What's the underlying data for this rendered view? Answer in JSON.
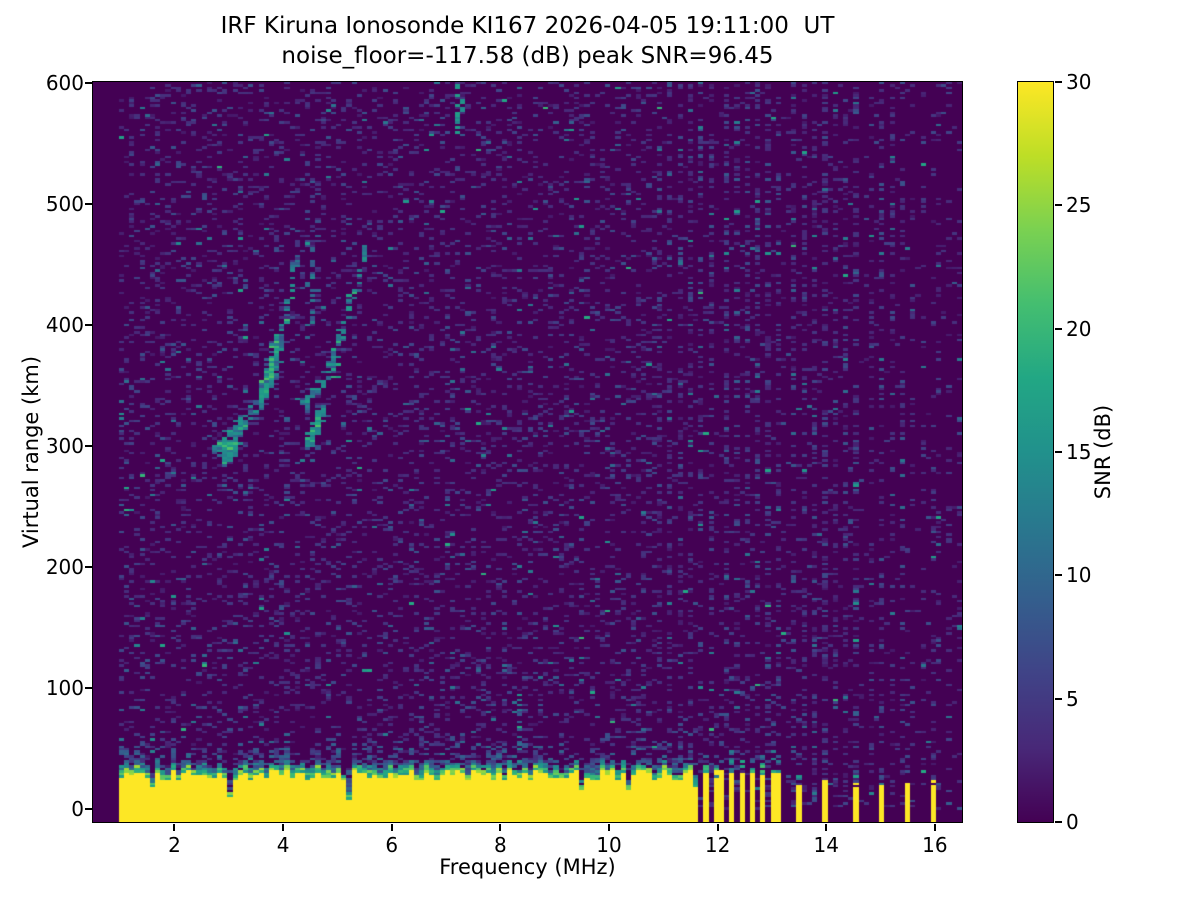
{
  "chart_data": {
    "type": "heatmap",
    "title": "IRF Kiruna Ionosonde KI167 2026-04-05 19:11:00  UT",
    "subtitle": "noise_floor=-117.58 (dB) peak SNR=96.45",
    "station": "KI167",
    "datetime_ut": "2026-04-05 19:11:00",
    "noise_floor_db": -117.58,
    "peak_snr_db": 96.45,
    "xlabel": "Frequency (MHz)",
    "ylabel": "Virtual range (km)",
    "xlim": [
      0.5,
      16.5
    ],
    "ylim": [
      -11,
      601
    ],
    "xticks": [
      2,
      4,
      6,
      8,
      10,
      12,
      14,
      16
    ],
    "yticks": [
      0,
      100,
      200,
      300,
      400,
      500,
      600
    ],
    "grid": false,
    "colormap": "viridis",
    "colormap_stops": [
      [
        0.0,
        "#440154"
      ],
      [
        0.1,
        "#482878"
      ],
      [
        0.2,
        "#404387"
      ],
      [
        0.3,
        "#345e8d"
      ],
      [
        0.4,
        "#29788e"
      ],
      [
        0.5,
        "#21918c"
      ],
      [
        0.6,
        "#22a784"
      ],
      [
        0.7,
        "#44be70"
      ],
      [
        0.8,
        "#7ad151"
      ],
      [
        0.9,
        "#bdde26"
      ],
      [
        1.0,
        "#fde725"
      ]
    ],
    "colorbar": {
      "label": "SNR (dB)",
      "ticks": [
        0,
        5,
        10,
        15,
        20,
        25,
        30
      ],
      "vmin": 0,
      "vmax": 30
    },
    "features": {
      "freq_start_mhz": 1.0,
      "ground_echo_band": {
        "freq_end_mhz": 11.6,
        "solid_top_km": 28,
        "fuzz_top_km": 52,
        "snr_db": 30
      },
      "restricted_band_bars_mhz": [
        11.81,
        12.03,
        12.24,
        12.46,
        12.67,
        12.86,
        13.06
      ],
      "isolated_bars_mhz": [
        13.52,
        13.98,
        14.53,
        14.99,
        15.49,
        15.99
      ],
      "echo_trace_branches": [
        [
          [
            2.8,
            296
          ],
          [
            2.95,
            303
          ],
          [
            3.1,
            312
          ],
          [
            3.25,
            322
          ]
        ],
        [
          [
            2.92,
            288
          ],
          [
            3.05,
            296
          ],
          [
            3.18,
            305
          ]
        ],
        [
          [
            3.3,
            318
          ],
          [
            3.5,
            330
          ],
          [
            3.7,
            345
          ],
          [
            3.85,
            363
          ],
          [
            3.95,
            385
          ],
          [
            4.05,
            408
          ],
          [
            4.15,
            432
          ],
          [
            4.25,
            458
          ]
        ],
        [
          [
            3.55,
            335
          ],
          [
            3.7,
            352
          ],
          [
            3.8,
            370
          ],
          [
            3.9,
            390
          ]
        ],
        [
          [
            4.35,
            330
          ],
          [
            4.55,
            343
          ],
          [
            4.75,
            357
          ],
          [
            4.95,
            374
          ],
          [
            5.1,
            393
          ],
          [
            5.25,
            415
          ],
          [
            5.4,
            440
          ],
          [
            5.52,
            463
          ]
        ],
        [
          [
            4.45,
            300
          ],
          [
            4.6,
            315
          ],
          [
            4.75,
            330
          ]
        ]
      ],
      "teal_streaks": [
        {
          "f": 4.52,
          "r0": 400,
          "r1": 468
        },
        {
          "f": 7.25,
          "r0": 556,
          "r1": 598
        },
        {
          "f": 8.35,
          "r0": 38,
          "r1": 95
        }
      ],
      "rfi_columns": {
        "start_mhz": 10.9,
        "spacing_mhz": 0.205
      }
    },
    "render": {
      "seed": 42,
      "ncols": 168,
      "nrows": 300,
      "noise_density": 0.17
    }
  }
}
